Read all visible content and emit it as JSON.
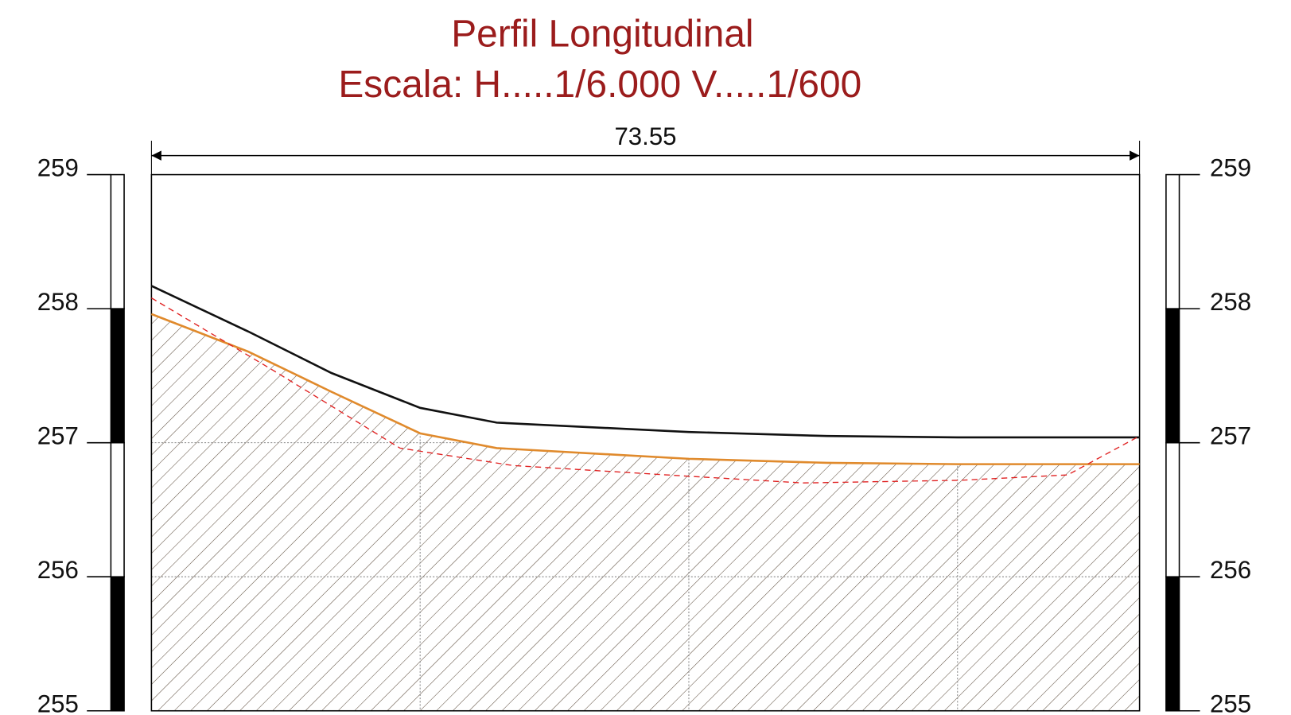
{
  "chart_data": {
    "type": "line",
    "title": "Perfil Longitudinal",
    "subtitle": "Escala:  H.....1/6.000   V.....1/600",
    "xlim": [
      0,
      73.55
    ],
    "xgrid": [
      20,
      40,
      60
    ],
    "ylim": [
      255,
      259
    ],
    "yticks": [
      255,
      256,
      257,
      258,
      259
    ],
    "grid": true,
    "hatch_series": 1,
    "series": [
      {
        "color": "#111111",
        "dashed": false,
        "x": [
          0,
          7.2,
          13.4,
          20,
          25.7,
          40,
          50.3,
          60,
          73.55
        ],
        "values": [
          258.17,
          257.83,
          257.52,
          257.26,
          257.15,
          257.08,
          257.05,
          257.04,
          257.04
        ]
      },
      {
        "color": "#e08a2c",
        "dashed": false,
        "x": [
          0,
          7.2,
          13.4,
          20,
          25.7,
          40,
          50.3,
          60,
          73.55
        ],
        "values": [
          257.96,
          257.68,
          257.38,
          257.07,
          256.96,
          256.88,
          256.85,
          256.84,
          256.84
        ]
      },
      {
        "color": "#e02020",
        "dashed": true,
        "x": [
          0,
          9.06,
          18.5,
          26.9,
          40,
          48.5,
          60.2,
          68.2,
          73.55
        ],
        "values": [
          258.08,
          257.54,
          256.96,
          256.83,
          256.75,
          256.7,
          256.72,
          256.76,
          257.05
        ]
      }
    ]
  }
}
